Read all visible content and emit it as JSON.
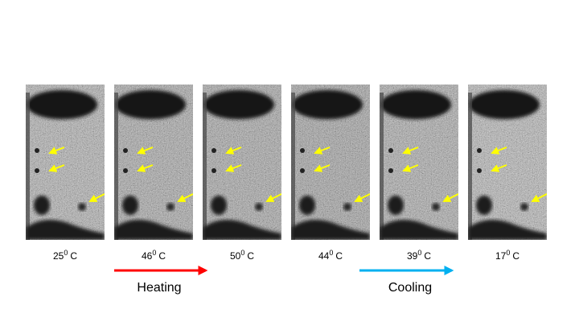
{
  "panels": [
    {
      "temp": "25",
      "sup": "0",
      "unit": "C"
    },
    {
      "temp": "46",
      "sup": "0",
      "unit": "C"
    },
    {
      "temp": "50",
      "sup": "0",
      "unit": "C"
    },
    {
      "temp": "44",
      "sup": "0",
      "unit": "C"
    },
    {
      "temp": "39",
      "sup": "0",
      "unit": "C"
    },
    {
      "temp": "17",
      "sup": "0",
      "unit": "C"
    }
  ],
  "arrows": [
    {
      "label": "Heating"
    },
    {
      "label": "Cooling"
    }
  ]
}
